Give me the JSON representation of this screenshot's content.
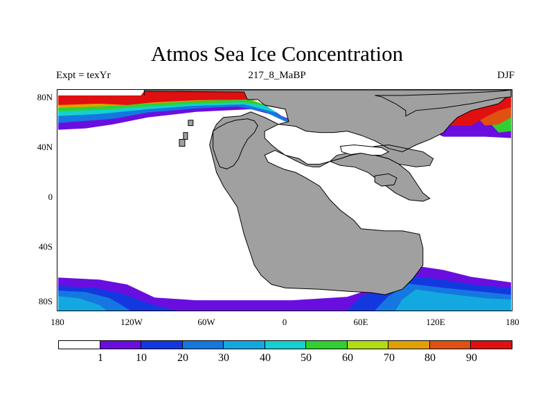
{
  "title": "Atmos Sea Ice Concentration",
  "subtitle_left": "Expt = texYr",
  "subtitle_center": "217_8_MaBP",
  "subtitle_right": "DJF",
  "lat_labels": [
    "80N",
    "40N",
    "0",
    "40S",
    "80S"
  ],
  "lon_labels": [
    "180",
    "120W",
    "60W",
    "0",
    "60E",
    "120E",
    "180"
  ],
  "colorbar": {
    "labels": [
      "1",
      "10",
      "20",
      "30",
      "40",
      "50",
      "60",
      "70",
      "80",
      "90"
    ],
    "colors": [
      "#ffffff",
      "#6a0ee0",
      "#1438e0",
      "#1478e0",
      "#14a8e0",
      "#14d0d0",
      "#30d030",
      "#b4dc14",
      "#e0a000",
      "#e05010",
      "#e01010"
    ]
  },
  "land_color": "#a0a0a0",
  "ocean_color": "#ffffff"
}
